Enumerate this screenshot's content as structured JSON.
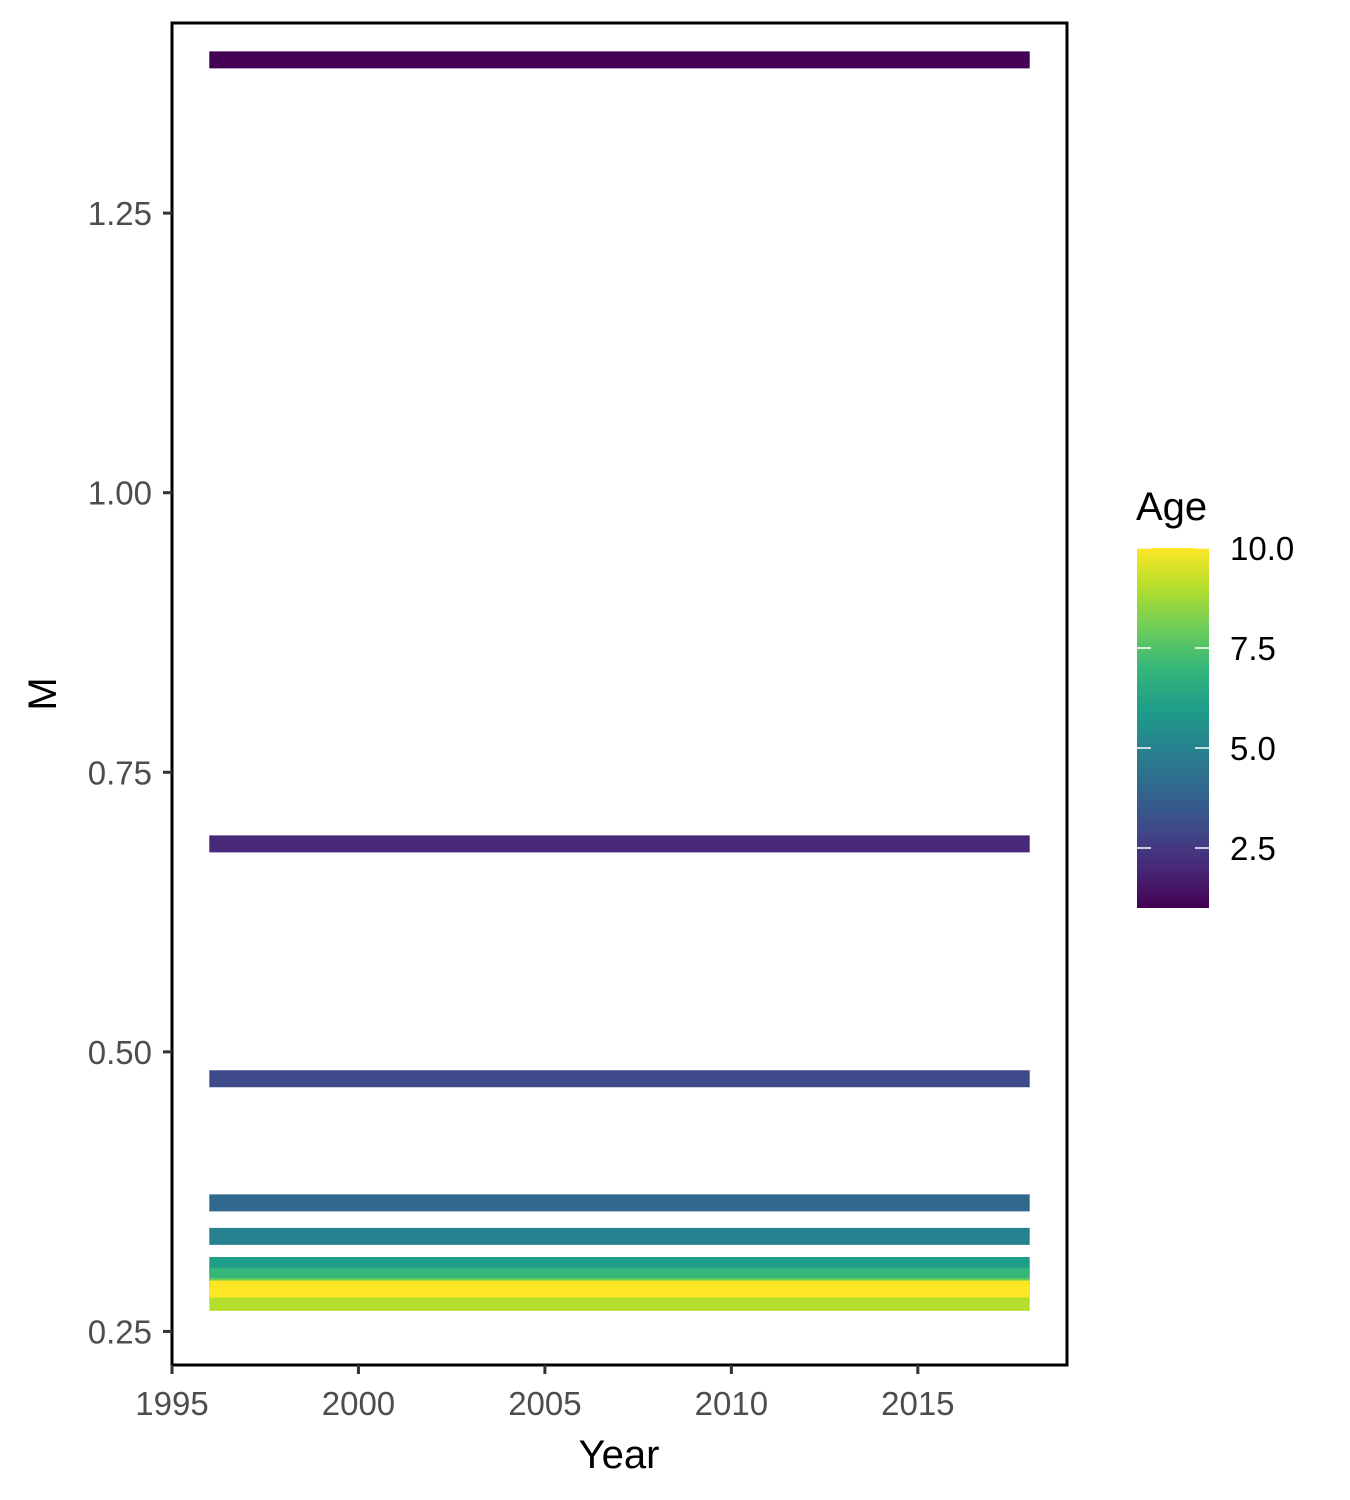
{
  "chart_data": {
    "type": "line",
    "xlabel": "Year",
    "ylabel": "M",
    "xlim": [
      1995,
      2019
    ],
    "ylim": [
      0.22,
      1.42
    ],
    "x_ticks": [
      1995,
      2000,
      2005,
      2010,
      2015
    ],
    "x_tick_labels": [
      "1995",
      "2000",
      "2005",
      "2010",
      "2015"
    ],
    "y_ticks": [
      0.25,
      0.5,
      0.75,
      1.0,
      1.25
    ],
    "y_tick_labels": [
      "0.25",
      "0.50",
      "0.75",
      "1.00",
      "1.25"
    ],
    "grid": false,
    "legend": {
      "title": "Age",
      "position": "right",
      "type": "colorbar",
      "range": [
        1,
        10
      ],
      "breaks": [
        2.5,
        5.0,
        7.5,
        10.0
      ],
      "break_labels": [
        "2.5",
        "5.0",
        "7.5",
        "10.0"
      ],
      "palette": [
        "#440154",
        "#482878",
        "#3E4A89",
        "#31688E",
        "#26828E",
        "#1F9E89",
        "#35B779",
        "#6DCD59",
        "#B4DE2C",
        "#FDE725"
      ]
    },
    "series": [
      {
        "age": 1,
        "color": "#440154",
        "x": [
          1996,
          2018
        ],
        "y": [
          1.387,
          1.387
        ]
      },
      {
        "age": 2,
        "color": "#482878",
        "x": [
          1996,
          2018
        ],
        "y": [
          0.686,
          0.686
        ]
      },
      {
        "age": 3,
        "color": "#3E4A89",
        "x": [
          1996,
          2018
        ],
        "y": [
          0.476,
          0.476
        ]
      },
      {
        "age": 4,
        "color": "#31688E",
        "x": [
          1996,
          2018
        ],
        "y": [
          0.365,
          0.365
        ]
      },
      {
        "age": 5,
        "color": "#26828E",
        "x": [
          1996,
          2018
        ],
        "y": [
          0.335,
          0.335
        ]
      },
      {
        "age": 6,
        "color": "#1F9E89",
        "x": [
          1996,
          2018
        ],
        "y": [
          0.309,
          0.309
        ]
      },
      {
        "age": 7,
        "color": "#35B779",
        "x": [
          1996,
          2018
        ],
        "y": [
          0.299,
          0.299
        ]
      },
      {
        "age": 8,
        "color": "#6DCD59",
        "x": [
          1996,
          2018
        ],
        "y": [
          0.29,
          0.29
        ]
      },
      {
        "age": 9,
        "color": "#B4DE2C",
        "x": [
          1996,
          2018
        ],
        "y": [
          0.276,
          0.276
        ]
      },
      {
        "age": 10,
        "color": "#FDE725",
        "x": [
          1996,
          2018
        ],
        "y": [
          0.288,
          0.288
        ]
      }
    ]
  }
}
